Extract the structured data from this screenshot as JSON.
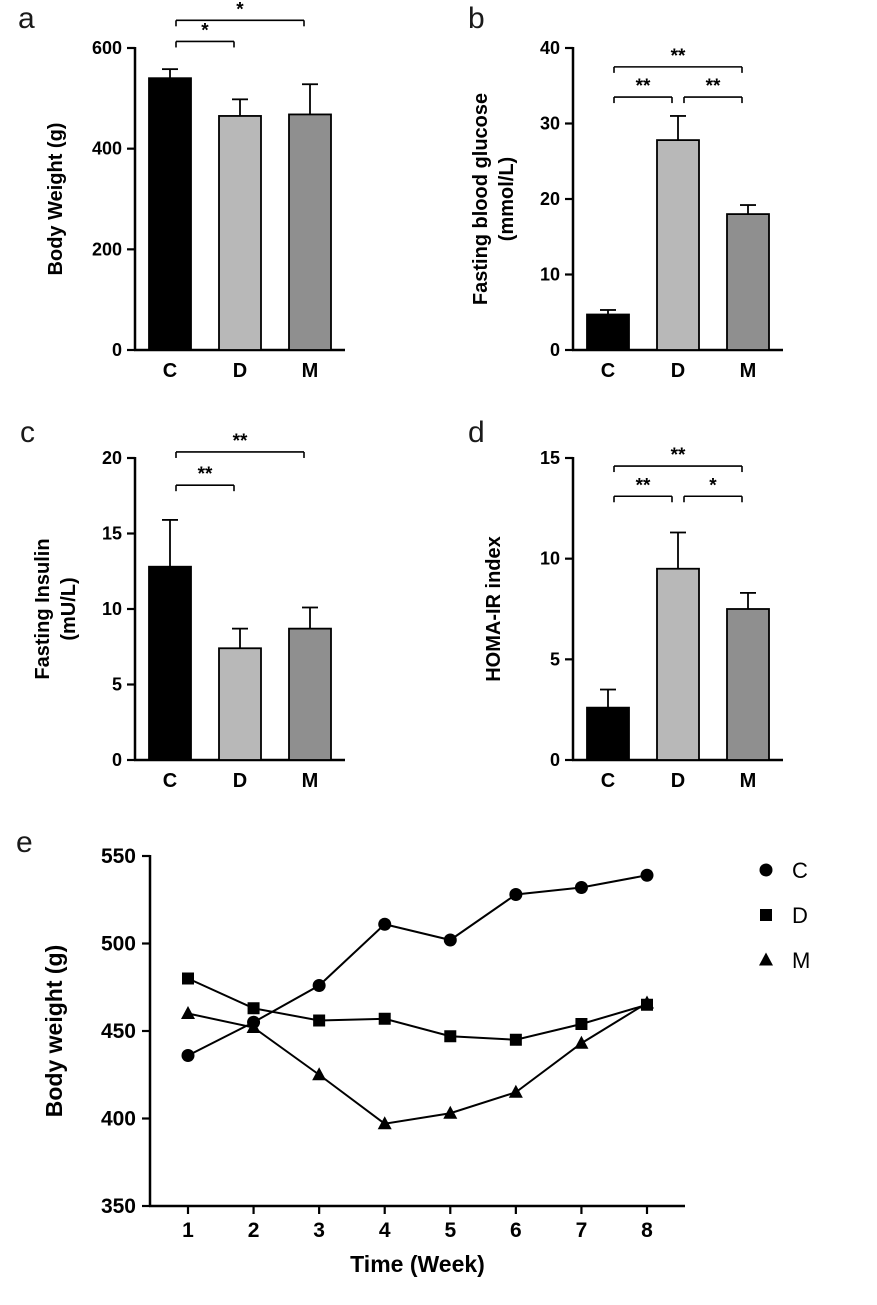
{
  "figure": {
    "background": "#ffffff",
    "ink_color": "#000000"
  },
  "chart_data": [
    {
      "id": "a",
      "panel_label": "a",
      "type": "bar",
      "categories": [
        "C",
        "D",
        "M"
      ],
      "values": [
        540,
        465,
        468
      ],
      "errors": [
        18,
        33,
        60
      ],
      "bar_colors": [
        "#000000",
        "#b8b8b8",
        "#8f8f8f"
      ],
      "ylabel": "Body Weight (g)",
      "ylim": [
        0,
        600
      ],
      "yticks": [
        0,
        200,
        400,
        600
      ],
      "significance": [
        {
          "from": 0,
          "to": 1,
          "label": "*",
          "y": 613
        },
        {
          "from": 0,
          "to": 2,
          "label": "*",
          "y": 655
        }
      ]
    },
    {
      "id": "b",
      "panel_label": "b",
      "type": "bar",
      "categories": [
        "C",
        "D",
        "M"
      ],
      "values": [
        4.7,
        27.8,
        18
      ],
      "errors": [
        0.6,
        3.2,
        1.2
      ],
      "bar_colors": [
        "#000000",
        "#b8b8b8",
        "#8f8f8f"
      ],
      "ylabel": "Fasting blood glucose\n(mmol/L)",
      "ylim": [
        0,
        40
      ],
      "yticks": [
        0,
        10,
        20,
        30,
        40
      ],
      "significance": [
        {
          "from": 0,
          "to": 1,
          "label": "**",
          "y": 33.5
        },
        {
          "from": 1,
          "to": 2,
          "label": "**",
          "y": 33.5
        },
        {
          "from": 0,
          "to": 2,
          "label": "**",
          "y": 37.5
        }
      ]
    },
    {
      "id": "c",
      "panel_label": "c",
      "type": "bar",
      "categories": [
        "C",
        "D",
        "M"
      ],
      "values": [
        12.8,
        7.4,
        8.7
      ],
      "errors": [
        3.1,
        1.3,
        1.4
      ],
      "bar_colors": [
        "#000000",
        "#b8b8b8",
        "#8f8f8f"
      ],
      "ylabel": "Fasting Insulin\n(mU/L)",
      "ylim": [
        0,
        20
      ],
      "yticks": [
        0,
        5,
        10,
        15,
        20
      ],
      "significance": [
        {
          "from": 0,
          "to": 1,
          "label": "**",
          "y": 18.2
        },
        {
          "from": 0,
          "to": 2,
          "label": "**",
          "y": 20.4
        }
      ]
    },
    {
      "id": "d",
      "panel_label": "d",
      "type": "bar",
      "categories": [
        "C",
        "D",
        "M"
      ],
      "values": [
        2.6,
        9.5,
        7.5
      ],
      "errors": [
        0.9,
        1.8,
        0.8
      ],
      "bar_colors": [
        "#000000",
        "#b8b8b8",
        "#8f8f8f"
      ],
      "ylabel": "HOMA-IR index",
      "ylim": [
        0,
        15
      ],
      "yticks": [
        0,
        5,
        10,
        15
      ],
      "significance": [
        {
          "from": 0,
          "to": 1,
          "label": "**",
          "y": 13.1
        },
        {
          "from": 1,
          "to": 2,
          "label": "*",
          "y": 13.1
        },
        {
          "from": 0,
          "to": 2,
          "label": "**",
          "y": 14.6
        }
      ]
    },
    {
      "id": "e",
      "panel_label": "e",
      "type": "line",
      "x": [
        1,
        2,
        3,
        4,
        5,
        6,
        7,
        8
      ],
      "series": [
        {
          "name": "C",
          "marker": "circle",
          "values": [
            436,
            455,
            476,
            511,
            502,
            528,
            532,
            539
          ]
        },
        {
          "name": "D",
          "marker": "square",
          "values": [
            480,
            463,
            456,
            457,
            447,
            445,
            454,
            465
          ]
        },
        {
          "name": "M",
          "marker": "triangle",
          "values": [
            460,
            452,
            425,
            397,
            403,
            415,
            443,
            466
          ]
        }
      ],
      "xlabel": "Time (Week)",
      "ylabel": "Body weight (g)",
      "ylim": [
        350,
        550
      ],
      "yticks": [
        350,
        400,
        450,
        500,
        550
      ],
      "legend_position": "right"
    }
  ]
}
